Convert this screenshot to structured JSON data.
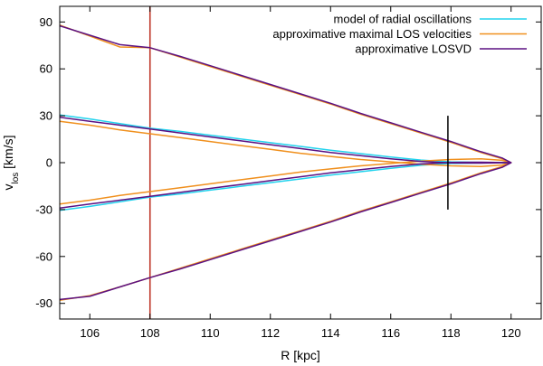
{
  "chart_data": {
    "type": "line",
    "xlabel": "R [kpc]",
    "ylabel": {
      "main": "v",
      "sub": "los",
      "unit": " [km/s]"
    },
    "xlim": [
      105,
      121
    ],
    "ylim": [
      -100,
      100
    ],
    "xticks": [
      106,
      108,
      110,
      112,
      114,
      116,
      118,
      120
    ],
    "yticks": [
      -90,
      -60,
      -30,
      0,
      30,
      60,
      90
    ],
    "grid": false,
    "legend_position": "top-right",
    "colors": {
      "radial": "#22d3ee",
      "maxlos": "#f0901e",
      "losvd": "#5b1182",
      "vline": "#c0392b",
      "errbar": "#000000"
    },
    "series": [
      {
        "name": "model of radial oscillations",
        "key": "radial",
        "paths": [
          [
            [
              105.0,
              30.5
            ],
            [
              106.0,
              28.0
            ],
            [
              107.0,
              25.0
            ],
            [
              108.0,
              22.0
            ],
            [
              109.0,
              20.0
            ],
            [
              110.0,
              17.6
            ],
            [
              111.0,
              15.2
            ],
            [
              112.0,
              12.8
            ],
            [
              113.0,
              10.4
            ],
            [
              114.0,
              8.0
            ],
            [
              115.0,
              5.8
            ],
            [
              116.0,
              3.6
            ],
            [
              117.0,
              1.7
            ],
            [
              118.0,
              0.5
            ],
            [
              119.0,
              0.2
            ],
            [
              120.0,
              0.0
            ]
          ],
          [
            [
              105.0,
              -30.5
            ],
            [
              106.0,
              -28.0
            ],
            [
              107.0,
              -25.0
            ],
            [
              108.0,
              -22.0
            ],
            [
              109.0,
              -20.0
            ],
            [
              110.0,
              -17.6
            ],
            [
              111.0,
              -15.2
            ],
            [
              112.0,
              -12.8
            ],
            [
              113.0,
              -10.4
            ],
            [
              114.0,
              -8.0
            ],
            [
              115.0,
              -5.8
            ],
            [
              116.0,
              -3.6
            ],
            [
              117.0,
              -1.7
            ],
            [
              118.0,
              -0.5
            ],
            [
              119.0,
              -0.2
            ],
            [
              120.0,
              0.0
            ]
          ]
        ]
      },
      {
        "name": "approximative maximal LOS velocities",
        "key": "maxlos",
        "paths": [
          [
            [
              105.0,
              88.0
            ],
            [
              106.0,
              81.0
            ],
            [
              107.0,
              74.0
            ],
            [
              108.0,
              73.5
            ],
            [
              109.0,
              67.5
            ],
            [
              110.0,
              61.5
            ],
            [
              111.0,
              55.5
            ],
            [
              112.0,
              49.5
            ],
            [
              113.0,
              43.5
            ],
            [
              114.0,
              37.5
            ],
            [
              115.0,
              31.0
            ],
            [
              116.0,
              25.0
            ],
            [
              117.0,
              19.0
            ],
            [
              118.0,
              13.0
            ],
            [
              119.0,
              6.5
            ],
            [
              119.7,
              2.5
            ],
            [
              120.0,
              0.0
            ],
            [
              119.7,
              -2.5
            ],
            [
              119.0,
              -6.5
            ],
            [
              118.0,
              -13.0
            ],
            [
              117.0,
              -19.0
            ],
            [
              116.0,
              -25.0
            ],
            [
              115.0,
              -31.0
            ],
            [
              114.0,
              -37.5
            ],
            [
              113.0,
              -43.5
            ],
            [
              112.0,
              -49.5
            ],
            [
              111.0,
              -55.5
            ],
            [
              110.0,
              -61.5
            ],
            [
              109.0,
              -67.5
            ],
            [
              108.0,
              -73.5
            ],
            [
              107.0,
              -79.5
            ],
            [
              106.0,
              -85.0
            ],
            [
              105.0,
              -88.0
            ]
          ],
          [
            [
              105.0,
              26.5
            ],
            [
              106.0,
              24.0
            ],
            [
              107.0,
              21.0
            ],
            [
              108.0,
              18.5
            ],
            [
              109.0,
              16.0
            ],
            [
              110.0,
              13.5
            ],
            [
              111.0,
              11.0
            ],
            [
              112.0,
              8.5
            ],
            [
              113.0,
              6.0
            ],
            [
              114.0,
              4.0
            ],
            [
              115.0,
              2.0
            ],
            [
              116.0,
              0.5
            ],
            [
              117.0,
              -1.0
            ],
            [
              118.0,
              -2.0
            ],
            [
              119.0,
              -2.5
            ],
            [
              119.7,
              -1.5
            ],
            [
              120.0,
              0.0
            ]
          ],
          [
            [
              105.0,
              -26.5
            ],
            [
              106.0,
              -24.0
            ],
            [
              107.0,
              -21.0
            ],
            [
              108.0,
              -18.5
            ],
            [
              109.0,
              -16.0
            ],
            [
              110.0,
              -13.5
            ],
            [
              111.0,
              -11.0
            ],
            [
              112.0,
              -8.5
            ],
            [
              113.0,
              -6.0
            ],
            [
              114.0,
              -4.0
            ],
            [
              115.0,
              -2.0
            ],
            [
              116.0,
              -0.5
            ],
            [
              117.0,
              1.0
            ],
            [
              118.0,
              2.0
            ],
            [
              119.0,
              2.5
            ],
            [
              119.7,
              1.5
            ],
            [
              120.0,
              0.0
            ]
          ]
        ]
      },
      {
        "name": "approximative LOSVD",
        "key": "losvd",
        "paths": [
          [
            [
              105.0,
              87.5
            ],
            [
              106.0,
              81.5
            ],
            [
              107.0,
              75.5
            ],
            [
              108.0,
              73.5
            ],
            [
              109.0,
              68.0
            ],
            [
              110.0,
              62.0
            ],
            [
              111.0,
              56.0
            ],
            [
              112.0,
              50.0
            ],
            [
              113.0,
              44.0
            ],
            [
              114.0,
              38.0
            ],
            [
              115.0,
              31.5
            ],
            [
              116.0,
              25.5
            ],
            [
              117.0,
              19.5
            ],
            [
              118.0,
              13.5
            ],
            [
              119.0,
              7.0
            ],
            [
              119.7,
              3.0
            ],
            [
              120.0,
              0.0
            ],
            [
              119.7,
              -3.0
            ],
            [
              119.0,
              -7.0
            ],
            [
              118.0,
              -13.5
            ],
            [
              117.0,
              -19.5
            ],
            [
              116.0,
              -25.5
            ],
            [
              115.0,
              -31.5
            ],
            [
              114.0,
              -38.0
            ],
            [
              113.0,
              -44.0
            ],
            [
              112.0,
              -50.0
            ],
            [
              111.0,
              -56.0
            ],
            [
              110.0,
              -62.0
            ],
            [
              109.0,
              -68.0
            ],
            [
              108.0,
              -73.5
            ],
            [
              107.0,
              -79.5
            ],
            [
              106.0,
              -85.5
            ],
            [
              105.0,
              -87.5
            ]
          ],
          [
            [
              105.0,
              29.0
            ],
            [
              106.0,
              26.5
            ],
            [
              107.0,
              24.0
            ],
            [
              108.0,
              21.5
            ],
            [
              109.0,
              19.0
            ],
            [
              110.0,
              16.5
            ],
            [
              111.0,
              14.0
            ],
            [
              112.0,
              11.5
            ],
            [
              113.0,
              9.0
            ],
            [
              114.0,
              6.5
            ],
            [
              115.0,
              4.5
            ],
            [
              116.0,
              2.5
            ],
            [
              117.0,
              0.8
            ],
            [
              118.0,
              -0.2
            ],
            [
              119.0,
              -0.3
            ],
            [
              120.0,
              0.0
            ]
          ],
          [
            [
              105.0,
              -29.0
            ],
            [
              106.0,
              -26.5
            ],
            [
              107.0,
              -24.0
            ],
            [
              108.0,
              -21.5
            ],
            [
              109.0,
              -19.0
            ],
            [
              110.0,
              -16.5
            ],
            [
              111.0,
              -14.0
            ],
            [
              112.0,
              -11.5
            ],
            [
              113.0,
              -9.0
            ],
            [
              114.0,
              -6.5
            ],
            [
              115.0,
              -4.5
            ],
            [
              116.0,
              -2.5
            ],
            [
              117.0,
              -0.8
            ],
            [
              118.0,
              0.2
            ],
            [
              119.0,
              0.3
            ],
            [
              120.0,
              0.0
            ]
          ]
        ]
      }
    ],
    "vertical_line": {
      "x": 108
    },
    "error_bar": {
      "x": 117.9,
      "y_low": -30,
      "y_high": 30
    }
  }
}
